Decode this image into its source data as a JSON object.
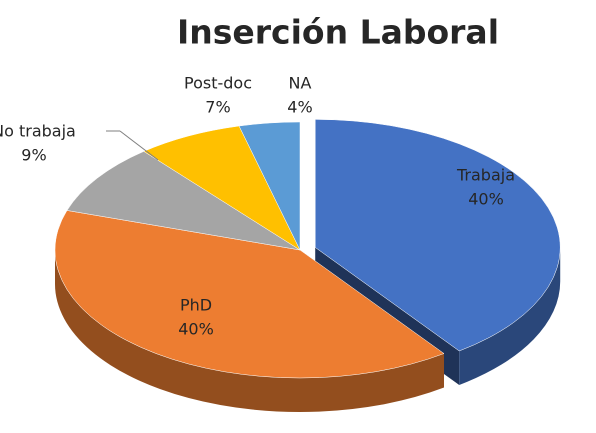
{
  "chart_data": {
    "type": "pie",
    "title": "Inserción Laboral",
    "categories": [
      "Trabaja",
      "PhD",
      "No trabaja",
      "Post-doc",
      "NA"
    ],
    "values": [
      40,
      40,
      9,
      7,
      4
    ],
    "value_labels": [
      "40%",
      "40%",
      "9%",
      "7%",
      "4%"
    ],
    "colors": [
      "#4472c4",
      "#ed7d31",
      "#a5a5a5",
      "#ffc000",
      "#5b9bd5"
    ]
  }
}
